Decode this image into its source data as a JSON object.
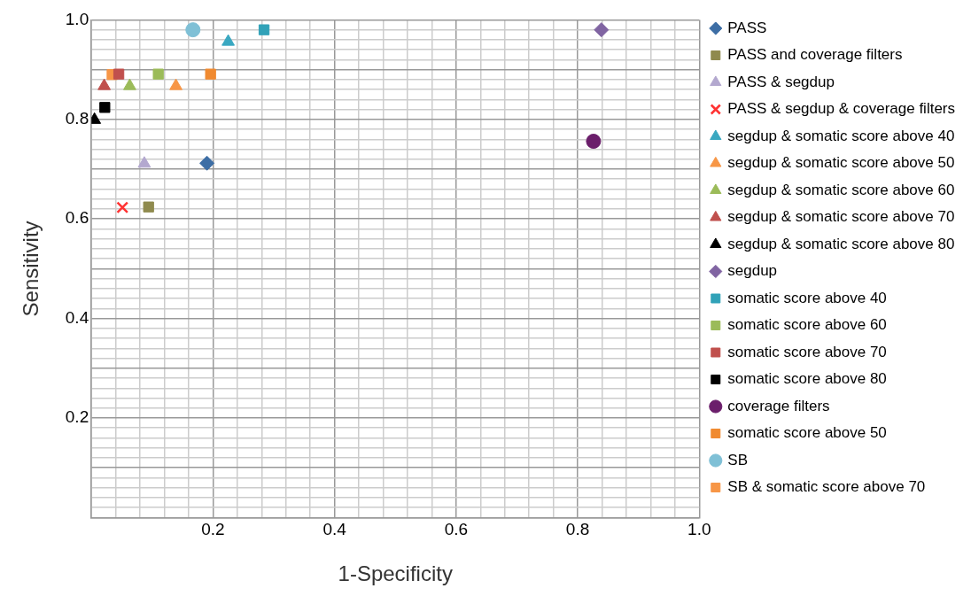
{
  "chart_data": {
    "type": "scatter",
    "xlabel": "1-Specificity",
    "ylabel": "Sensitivity",
    "xlim": [
      0,
      1
    ],
    "ylim": [
      0,
      1
    ],
    "grid": true,
    "legend": "right",
    "xticks": [
      {
        "value": 0,
        "label": null
      },
      {
        "value": 0.04,
        "label": null
      },
      {
        "value": 0.08,
        "label": null
      },
      {
        "value": 0.12,
        "label": null
      },
      {
        "value": 0.16,
        "label": null
      },
      0.2,
      {
        "value": 0.24,
        "label": null
      },
      {
        "value": 0.28,
        "label": null
      },
      {
        "value": 0.32,
        "label": null
      },
      {
        "value": 0.36,
        "label": null
      },
      0.4,
      {
        "value": 0.44,
        "label": null
      },
      {
        "value": 0.48,
        "label": null
      },
      {
        "value": 0.52,
        "label": null
      },
      {
        "value": 0.56,
        "label": null
      },
      0.6,
      {
        "value": 0.64,
        "label": null
      },
      {
        "value": 0.68,
        "label": null
      },
      {
        "value": 0.72,
        "label": null
      },
      {
        "value": 0.76,
        "label": null
      },
      0.8,
      {
        "value": 0.84,
        "label": null
      },
      {
        "value": 0.88,
        "label": null
      },
      {
        "value": 0.92,
        "label": null
      },
      {
        "value": 0.96,
        "label": null
      },
      {
        "value": 1,
        "label": "1.0"
      }
    ],
    "yticks": [
      {
        "value": 0,
        "label": null
      },
      {
        "value": 0.02,
        "label": null
      },
      {
        "value": 0.04,
        "label": null
      },
      {
        "value": 0.06,
        "label": null
      },
      {
        "value": 0.08,
        "label": null
      },
      {
        "value": 0.1,
        "label": null
      },
      {
        "value": 0.12,
        "label": null
      },
      {
        "value": 0.14,
        "label": null
      },
      {
        "value": 0.16,
        "label": null
      },
      {
        "value": 0.18,
        "label": null
      },
      0.2,
      {
        "value": 0.22,
        "label": null
      },
      {
        "value": 0.24,
        "label": null
      },
      {
        "value": 0.26,
        "label": null
      },
      {
        "value": 0.28,
        "label": null
      },
      {
        "value": 0.3,
        "label": null
      },
      {
        "value": 0.32,
        "label": null
      },
      {
        "value": 0.34,
        "label": null
      },
      {
        "value": 0.36,
        "label": null
      },
      {
        "value": 0.38,
        "label": null
      },
      0.4,
      {
        "value": 0.42,
        "label": null
      },
      {
        "value": 0.44,
        "label": null
      },
      {
        "value": 0.46,
        "label": null
      },
      {
        "value": 0.48,
        "label": null
      },
      {
        "value": 0.5,
        "label": null
      },
      {
        "value": 0.52,
        "label": null
      },
      {
        "value": 0.54,
        "label": null
      },
      {
        "value": 0.56,
        "label": null
      },
      {
        "value": 0.58,
        "label": null
      },
      0.6,
      {
        "value": 0.62,
        "label": null
      },
      {
        "value": 0.64,
        "label": null
      },
      {
        "value": 0.66,
        "label": null
      },
      {
        "value": 0.68,
        "label": null
      },
      {
        "value": 0.7,
        "label": null
      },
      {
        "value": 0.72,
        "label": null
      },
      {
        "value": 0.74,
        "label": null
      },
      {
        "value": 0.76,
        "label": null
      },
      {
        "value": 0.78,
        "label": null
      },
      0.8,
      {
        "value": 0.82,
        "label": null
      },
      {
        "value": 0.84,
        "label": null
      },
      {
        "value": 0.86,
        "label": null
      },
      {
        "value": 0.88,
        "label": null
      },
      {
        "value": 0.9,
        "label": null
      },
      {
        "value": 0.92,
        "label": null
      },
      {
        "value": 0.94,
        "label": null
      },
      {
        "value": 0.96,
        "label": null
      },
      {
        "value": 0.98,
        "label": null
      },
      {
        "value": 1,
        "label": "1.0"
      }
    ],
    "series": [
      {
        "name": "PASS",
        "color": "#3d6ea5",
        "marker": "diamond",
        "x": [
          0.19
        ],
        "values": [
          0.712
        ]
      },
      {
        "name": "PASS and coverage filters",
        "color": "#8f8a4e",
        "marker": "square",
        "x": [
          0.094
        ],
        "values": [
          0.624
        ]
      },
      {
        "name": "PASS & segdup",
        "color": "#b3a8cf",
        "marker": "triangle",
        "x": [
          0.087
        ],
        "values": [
          0.711
        ]
      },
      {
        "name": "PASS & segdup & coverage filters",
        "color": "#ff3333",
        "marker": "cross",
        "x": [
          0.051
        ],
        "values": [
          0.623
        ]
      },
      {
        "name": "segdup & somatic score above 40",
        "color": "#3aa8c1",
        "marker": "triangle",
        "x": [
          0.225
        ],
        "values": [
          0.956
        ]
      },
      {
        "name": "segdup & somatic score above 50",
        "color": "#f79646",
        "marker": "triangle",
        "x": [
          0.139
        ],
        "values": [
          0.867
        ]
      },
      {
        "name": "segdup & somatic score above 60",
        "color": "#9bbb59",
        "marker": "triangle",
        "x": [
          0.063
        ],
        "values": [
          0.867
        ]
      },
      {
        "name": "segdup & somatic score above 70",
        "color": "#c0504d",
        "marker": "triangle",
        "x": [
          0.021
        ],
        "values": [
          0.867
        ]
      },
      {
        "name": "segdup & somatic score above 80",
        "color": "#000000",
        "marker": "triangle",
        "x": [
          0.005
        ],
        "values": [
          0.799
        ]
      },
      {
        "name": "segdup",
        "color": "#8064a2",
        "marker": "diamond",
        "x": [
          0.839
        ],
        "values": [
          0.98
        ]
      },
      {
        "name": "somatic score above 40",
        "color": "#31a2b8",
        "marker": "square",
        "x": [
          0.284
        ],
        "values": [
          0.98
        ]
      },
      {
        "name": "somatic score above 60",
        "color": "#9bbb59",
        "marker": "square",
        "x": [
          0.11
        ],
        "values": [
          0.891
        ]
      },
      {
        "name": "somatic score above 70",
        "color": "#c0504d",
        "marker": "square",
        "x": [
          0.045
        ],
        "values": [
          0.891
        ]
      },
      {
        "name": "somatic score above 80",
        "color": "#000000",
        "marker": "square",
        "x": [
          0.022
        ],
        "values": [
          0.824
        ]
      },
      {
        "name": "coverage filters",
        "color": "#6b1e6b",
        "marker": "circle",
        "x": [
          0.826
        ],
        "values": [
          0.756
        ]
      },
      {
        "name": "somatic score above 50",
        "color": "#f08a30",
        "marker": "square",
        "x": [
          0.196
        ],
        "values": [
          0.891
        ]
      },
      {
        "name": "SB",
        "color": "#7fc0d6",
        "marker": "circle",
        "x": [
          0.167
        ],
        "values": [
          0.98
        ]
      },
      {
        "name": "SB & somatic score above 70",
        "color": "#f79646",
        "marker": "square",
        "x": [
          0.034
        ],
        "values": [
          0.89
        ]
      }
    ]
  }
}
